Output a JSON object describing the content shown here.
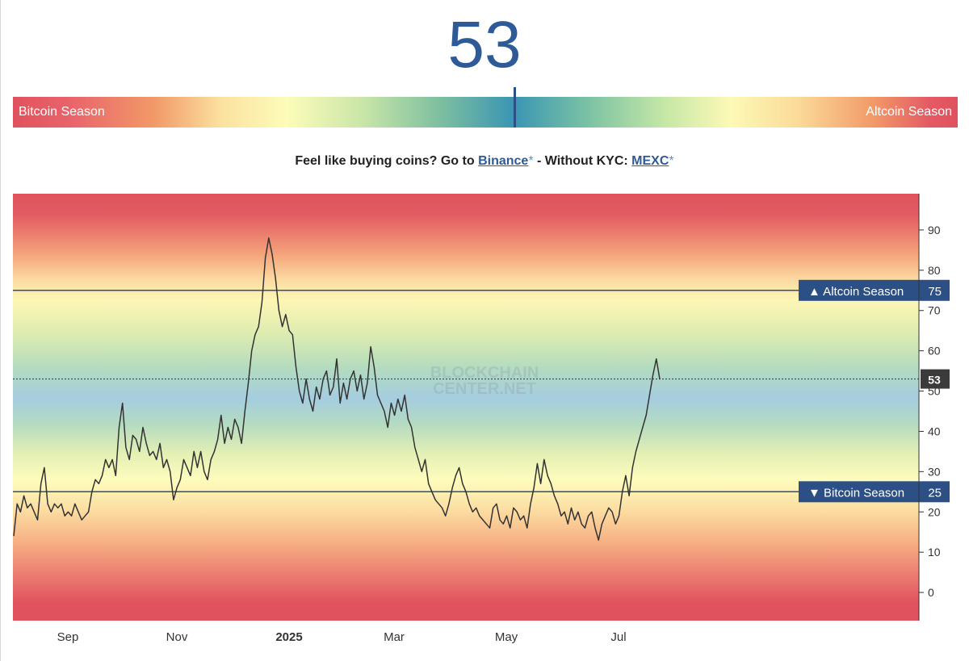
{
  "header": {
    "current_value": "53"
  },
  "season_bar": {
    "left_label": "Bitcoin Season",
    "right_label": "Altcoin Season",
    "indicator_value": 53
  },
  "promo": {
    "prefix": "Feel like buying coins? Go to ",
    "link1": "Binance",
    "star1": "*",
    "middle": " - Without KYC: ",
    "link2": "MEXC",
    "star2": "*"
  },
  "watermark": {
    "line1": "BLOCKCHAIN",
    "line2": "CENTER.NET"
  },
  "colors": {
    "accent": "#2f5a98",
    "line_label_bg": "#2c4f86",
    "series": "#333333",
    "red": "#e0525d",
    "yellow": "#fdfcbd",
    "blue": "#a5cde0"
  },
  "chart_data": {
    "type": "line",
    "ylim": [
      -7,
      99
    ],
    "y_ticks": [
      0,
      10,
      20,
      30,
      40,
      50,
      60,
      70,
      80,
      90
    ],
    "x_ticks": [
      "Sep",
      "Nov",
      "2025",
      "Mar",
      "May",
      "Jul"
    ],
    "reference_lines": [
      {
        "label": "▲ Altcoin Season",
        "value": 75
      },
      {
        "label": "▼ Bitcoin Season",
        "value": 25
      }
    ],
    "current": 53,
    "series": [
      {
        "values": [
          14,
          22,
          20,
          24,
          21,
          22,
          20,
          18,
          27,
          31,
          22,
          20,
          22,
          21,
          22,
          19,
          20,
          19,
          22,
          20,
          18,
          19,
          20,
          25,
          28,
          27,
          29,
          33,
          31,
          33,
          29,
          41,
          47,
          36,
          33,
          39,
          38,
          35,
          41,
          37,
          34,
          35,
          33,
          37,
          31,
          33,
          30,
          23,
          26,
          28,
          33,
          31,
          29,
          35,
          31,
          35,
          30,
          28,
          33,
          35,
          38,
          44,
          37,
          41,
          38,
          43,
          41,
          37,
          45,
          52,
          60,
          64,
          66,
          72,
          83,
          88,
          84,
          78,
          70,
          66,
          69,
          65,
          64,
          56,
          50,
          47,
          53,
          48,
          45,
          51,
          48,
          53,
          55,
          49,
          51,
          58,
          47,
          52,
          48,
          53,
          55,
          50,
          54,
          48,
          52,
          61,
          56,
          49,
          47,
          45,
          41,
          47,
          44,
          48,
          45,
          49,
          43,
          41,
          36,
          33,
          30,
          33,
          27,
          25,
          23,
          22,
          21,
          19,
          22,
          26,
          29,
          31,
          27,
          25,
          22,
          20,
          21,
          19,
          18,
          17,
          16,
          21,
          22,
          18,
          17,
          19,
          16,
          21,
          20,
          18,
          19,
          16,
          22,
          26,
          32,
          27,
          33,
          29,
          27,
          24,
          22,
          19,
          20,
          17,
          21,
          18,
          20,
          17,
          16,
          19,
          20,
          16,
          13,
          17,
          19,
          21,
          20,
          17,
          19,
          25,
          29,
          24,
          31,
          35,
          38,
          41,
          44,
          49,
          54,
          58,
          53
        ]
      }
    ]
  }
}
